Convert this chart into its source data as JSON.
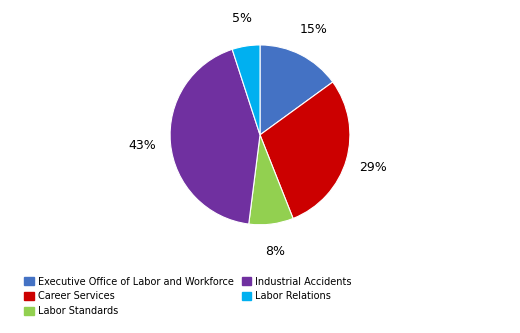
{
  "labels": [
    "Executive Office of Labor and Workforce",
    "Career Services",
    "Labor Standards",
    "Industrial Accidents",
    "Labor Relations"
  ],
  "values": [
    15,
    29,
    8,
    43,
    5
  ],
  "colors": [
    "#4472C4",
    "#CC0000",
    "#92D050",
    "#7030A0",
    "#00B0F0"
  ],
  "shadow_colors": [
    "#2A4A8A",
    "#880000",
    "#5A9010",
    "#4A1070",
    "#007090"
  ],
  "legend_labels_col1": [
    "Executive Office of Labor and Workforce",
    "Labor Standards",
    "Labor Relations"
  ],
  "legend_labels_col2": [
    "Career Services",
    "Industrial Accidents"
  ],
  "background_color": "#FFFFFF",
  "startangle": 90,
  "label_pct_distance": 1.18,
  "pie_size": 0.75
}
